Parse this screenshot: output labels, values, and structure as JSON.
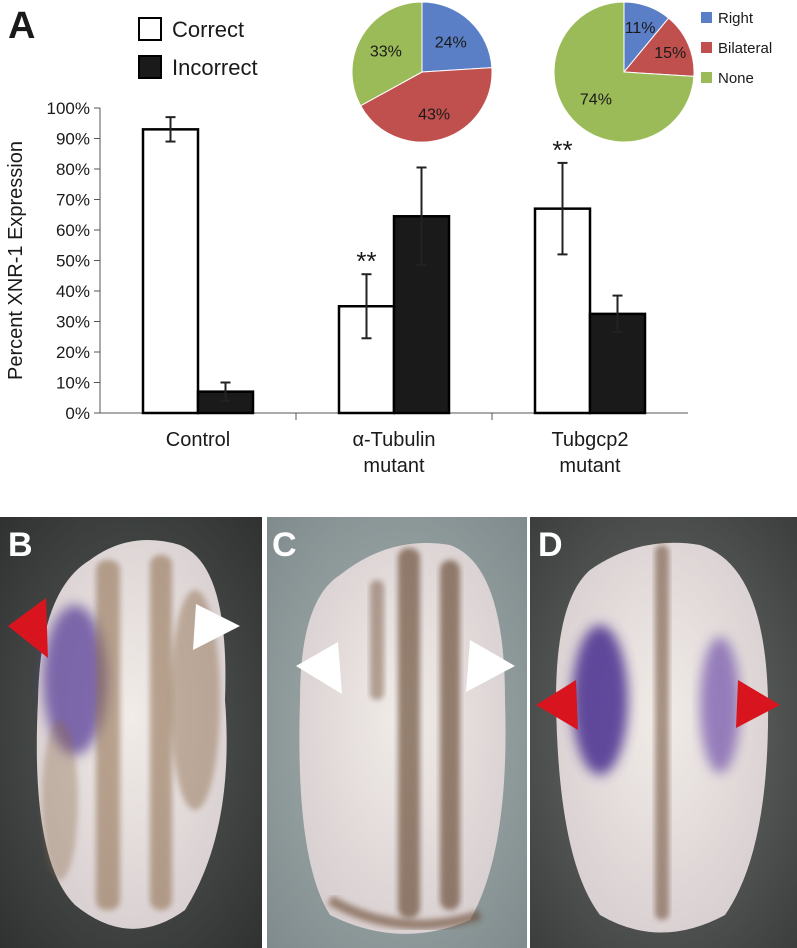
{
  "panels": {
    "chart_letter": "A",
    "photo_letters": [
      "B",
      "C",
      "D"
    ]
  },
  "chart_data": [
    {
      "type": "bar",
      "categories": [
        "Control",
        "α-Tubulin\nmutant",
        "Tubgcp2\nmutant"
      ],
      "series": [
        {
          "name": "Correct",
          "values": [
            93,
            35,
            67
          ],
          "error": [
            4,
            10.5,
            15
          ],
          "fill": "#ffffff",
          "stroke": "#000000"
        },
        {
          "name": "Incorrect",
          "values": [
            7,
            64.5,
            32.5
          ],
          "error": [
            3,
            16,
            6
          ],
          "fill": "#1a1a1a",
          "stroke": "#000000"
        }
      ],
      "significance": [
        {
          "series": "Correct",
          "category_index": 1,
          "label": "**"
        },
        {
          "series": "Correct",
          "category_index": 2,
          "label": "**"
        }
      ],
      "ylabel": "Percent XNR-1 Expression",
      "xlabel": "",
      "ylim": [
        0,
        100
      ],
      "yticks": [
        "0%",
        "10%",
        "20%",
        "30%",
        "40%",
        "50%",
        "60%",
        "70%",
        "80%",
        "90%",
        "100%"
      ],
      "legend": {
        "placement": "top-left",
        "entries": [
          "Correct",
          "Incorrect"
        ]
      }
    },
    {
      "type": "pie",
      "labels": [
        "Right",
        "Bilateral",
        "None"
      ],
      "values": [
        24,
        43,
        33
      ],
      "value_labels": [
        "24%",
        "43%",
        "33%"
      ],
      "colors": [
        "#5b7fc6",
        "#c0504d",
        "#9bbb59"
      ]
    },
    {
      "type": "pie",
      "labels": [
        "Right",
        "Bilateral",
        "None"
      ],
      "values": [
        11,
        15,
        74
      ],
      "value_labels": [
        "11%",
        "15%",
        "74%"
      ],
      "colors": [
        "#5b7fc6",
        "#c0504d",
        "#9bbb59"
      ],
      "legend": {
        "placement": "right",
        "entries": [
          "Right",
          "Bilateral",
          "None"
        ]
      }
    }
  ]
}
